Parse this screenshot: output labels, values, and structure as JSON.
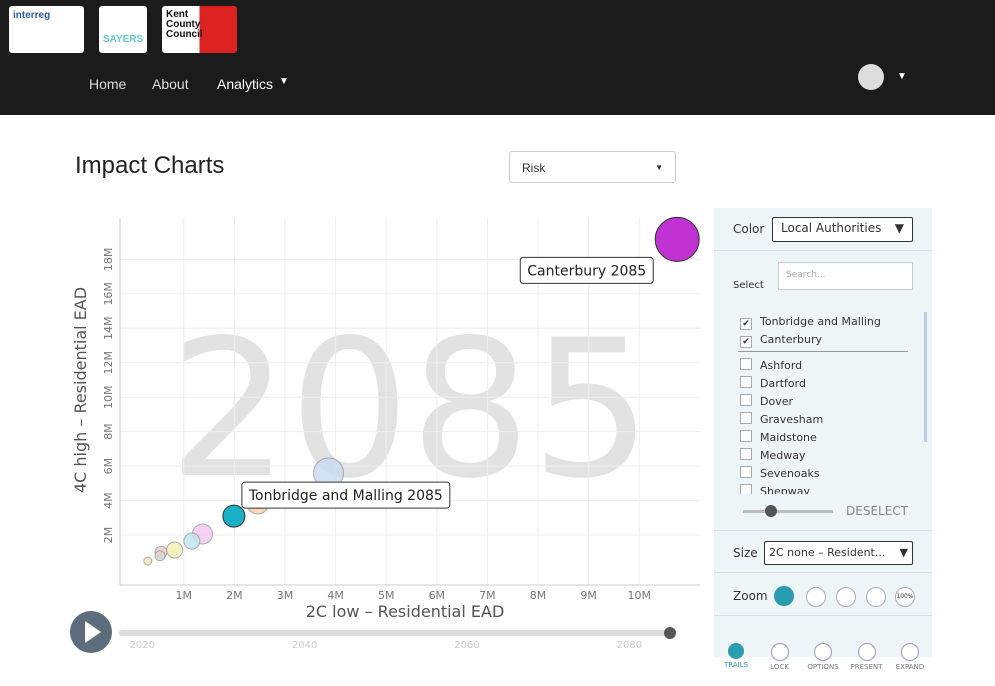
{
  "logos": [
    "interreg",
    "SAYERS",
    "Kent County Council"
  ],
  "nav": {
    "links": [
      "Home",
      "About",
      "Analytics"
    ]
  },
  "page_title": "Impact Charts",
  "dropdown": "Risk",
  "chart": {
    "type": "scatter",
    "x_label": "2C low – Residential EAD",
    "y_label": "4C high – Residential EAD",
    "xlim": [
      -260000,
      11200000
    ],
    "ylim": [
      -900000,
      20400000
    ],
    "xticks": [
      {
        "value": 1000000,
        "label": "1M"
      },
      {
        "value": 2000000,
        "label": "2M"
      },
      {
        "value": 3000000,
        "label": "3M"
      },
      {
        "value": 4000000,
        "label": "4M"
      },
      {
        "value": 5000000,
        "label": "5M"
      },
      {
        "value": 6000000,
        "label": "6M"
      },
      {
        "value": 7000000,
        "label": "7M"
      },
      {
        "value": 8000000,
        "label": "8M"
      },
      {
        "value": 9000000,
        "label": "9M"
      },
      {
        "value": 10000000,
        "label": "10M"
      }
    ],
    "yticks": [
      {
        "value": 2000000,
        "label": "2M"
      },
      {
        "value": 4000000,
        "label": "4M"
      },
      {
        "value": 6000000,
        "label": "6M"
      },
      {
        "value": 8000000,
        "label": "8M"
      },
      {
        "value": 10000000,
        "label": "10M"
      },
      {
        "value": 12000000,
        "label": "12M"
      },
      {
        "value": 14000000,
        "label": "14M"
      },
      {
        "value": 16000000,
        "label": "16M"
      },
      {
        "value": 18000000,
        "label": "18M"
      }
    ],
    "grid": true,
    "points": [
      {
        "x": 3860000,
        "y": 5600000,
        "size": 225,
        "color": "#c9dcf0"
      },
      {
        "x": 2460000,
        "y": 3860000,
        "size": 121,
        "color": "#f8cfa8"
      },
      {
        "x": 1370000,
        "y": 2060000,
        "size": 100,
        "color": "#f1c6f0"
      },
      {
        "x": 1160000,
        "y": 1650000,
        "size": 64,
        "color": "#bfe6f0"
      },
      {
        "x": 820000,
        "y": 1130000,
        "size": 64,
        "color": "#f4efb0"
      },
      {
        "x": 550000,
        "y": 1000000,
        "size": 36,
        "color": "#f4c6c6"
      },
      {
        "x": 530000,
        "y": 800000,
        "size": 25,
        "color": "#d8d8d8"
      },
      {
        "x": 290000,
        "y": 490000,
        "size": 16,
        "color": "#f0e8b0"
      },
      {
        "name": "Tonbridge and Malling",
        "label": "Tonbridge and Malling 2085",
        "x": 1990000,
        "y": 3100000,
        "size": 121,
        "color": "#1ab0c8"
      },
      {
        "name": "Canterbury",
        "label": "Canterbury 2085",
        "x": 10750000,
        "y": 19160000,
        "size": 484,
        "color": "#c032d2"
      }
    ]
  },
  "timeline": {
    "value": 2085,
    "range": [
      2017.5,
      2085
    ],
    "ticks": [
      2020,
      2040,
      2060,
      2080
    ]
  },
  "panel": {
    "color_label": "Color",
    "color_select": "Local Authorities",
    "search_placeholder": "Search...",
    "select_label": "Select",
    "checked": [
      "Tonbridge and Malling",
      "Canterbury"
    ],
    "unchecked": [
      "Ashford",
      "Dartford",
      "Dover",
      "Gravesham",
      "Maidstone",
      "Medway",
      "Sevenoaks",
      "Shepway"
    ],
    "deselect": "DESELECT",
    "size_label": "Size",
    "size_select": "2C none – Resident...",
    "zoom_label": "Zoom",
    "zoom_pct": "100%",
    "tools": [
      "TRAILS",
      "LOCK",
      "OPTIONS",
      "PRESENT",
      "EXPAND"
    ]
  }
}
